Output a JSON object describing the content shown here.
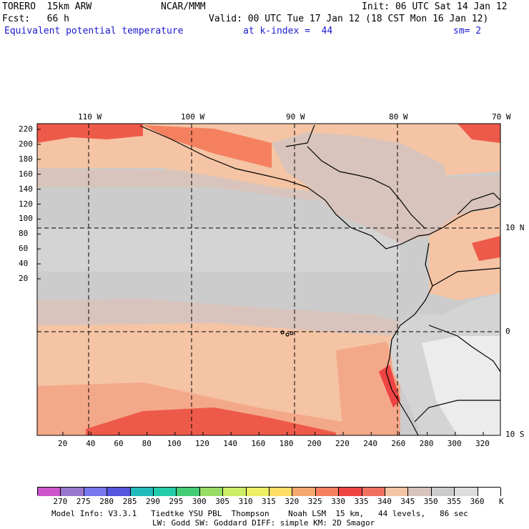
{
  "header": {
    "model": "TORERO  15km ARW",
    "center": "NCAR/MMM",
    "init": "Init: 06 UTC Sat 14 Jan 12",
    "fcst": "Fcst:   66 h",
    "valid": "Valid: 00 UTC Tue 17 Jan 12 (18 CST Mon 16 Jan 12)",
    "field": "Equivalent potential temperature",
    "kindex": "at k-index =  44",
    "sm": "sm= 2"
  },
  "map": {
    "lon_labels": [
      "110 W",
      "100 W",
      "90 W",
      "80 W",
      "70 W"
    ],
    "lat_labels": [
      "10 N",
      "0",
      "10 S"
    ],
    "y_ticks": [
      "220",
      "200",
      "180",
      "160",
      "140",
      "120",
      "100",
      "80",
      "60",
      "40",
      "20"
    ],
    "x_ticks": [
      "20",
      "40",
      "60",
      "80",
      "100",
      "120",
      "140",
      "160",
      "180",
      "200",
      "220",
      "240",
      "260",
      "280",
      "300",
      "320"
    ]
  },
  "colorbar": {
    "labels": [
      "270",
      "275",
      "280",
      "285",
      "290",
      "295",
      "300",
      "305",
      "310",
      "315",
      "320",
      "325",
      "330",
      "335",
      "340",
      "345",
      "350",
      "355",
      "360"
    ],
    "unit": "K",
    "colors": [
      "#cc55cc",
      "#9977cc",
      "#7777ee",
      "#5555dd",
      "#22bbbb",
      "#22ccaa",
      "#44cc77",
      "#99dd66",
      "#ccee66",
      "#eeee66",
      "#ffdd66",
      "#f4a870",
      "#f48060",
      "#ee4444",
      "#f07060",
      "#f4c4a4",
      "#d8c4bc",
      "#cccccc",
      "#dcdcdc",
      "#ffffff"
    ]
  },
  "footer": {
    "line1": "Model Info: V3.3.1   Tiedtke YSU PBL  Thompson    Noah LSM  15 km,   44 levels,   86 sec",
    "line2": "LW: Godd SW: Goddard DIFF: simple KM: 2D Smagor"
  }
}
